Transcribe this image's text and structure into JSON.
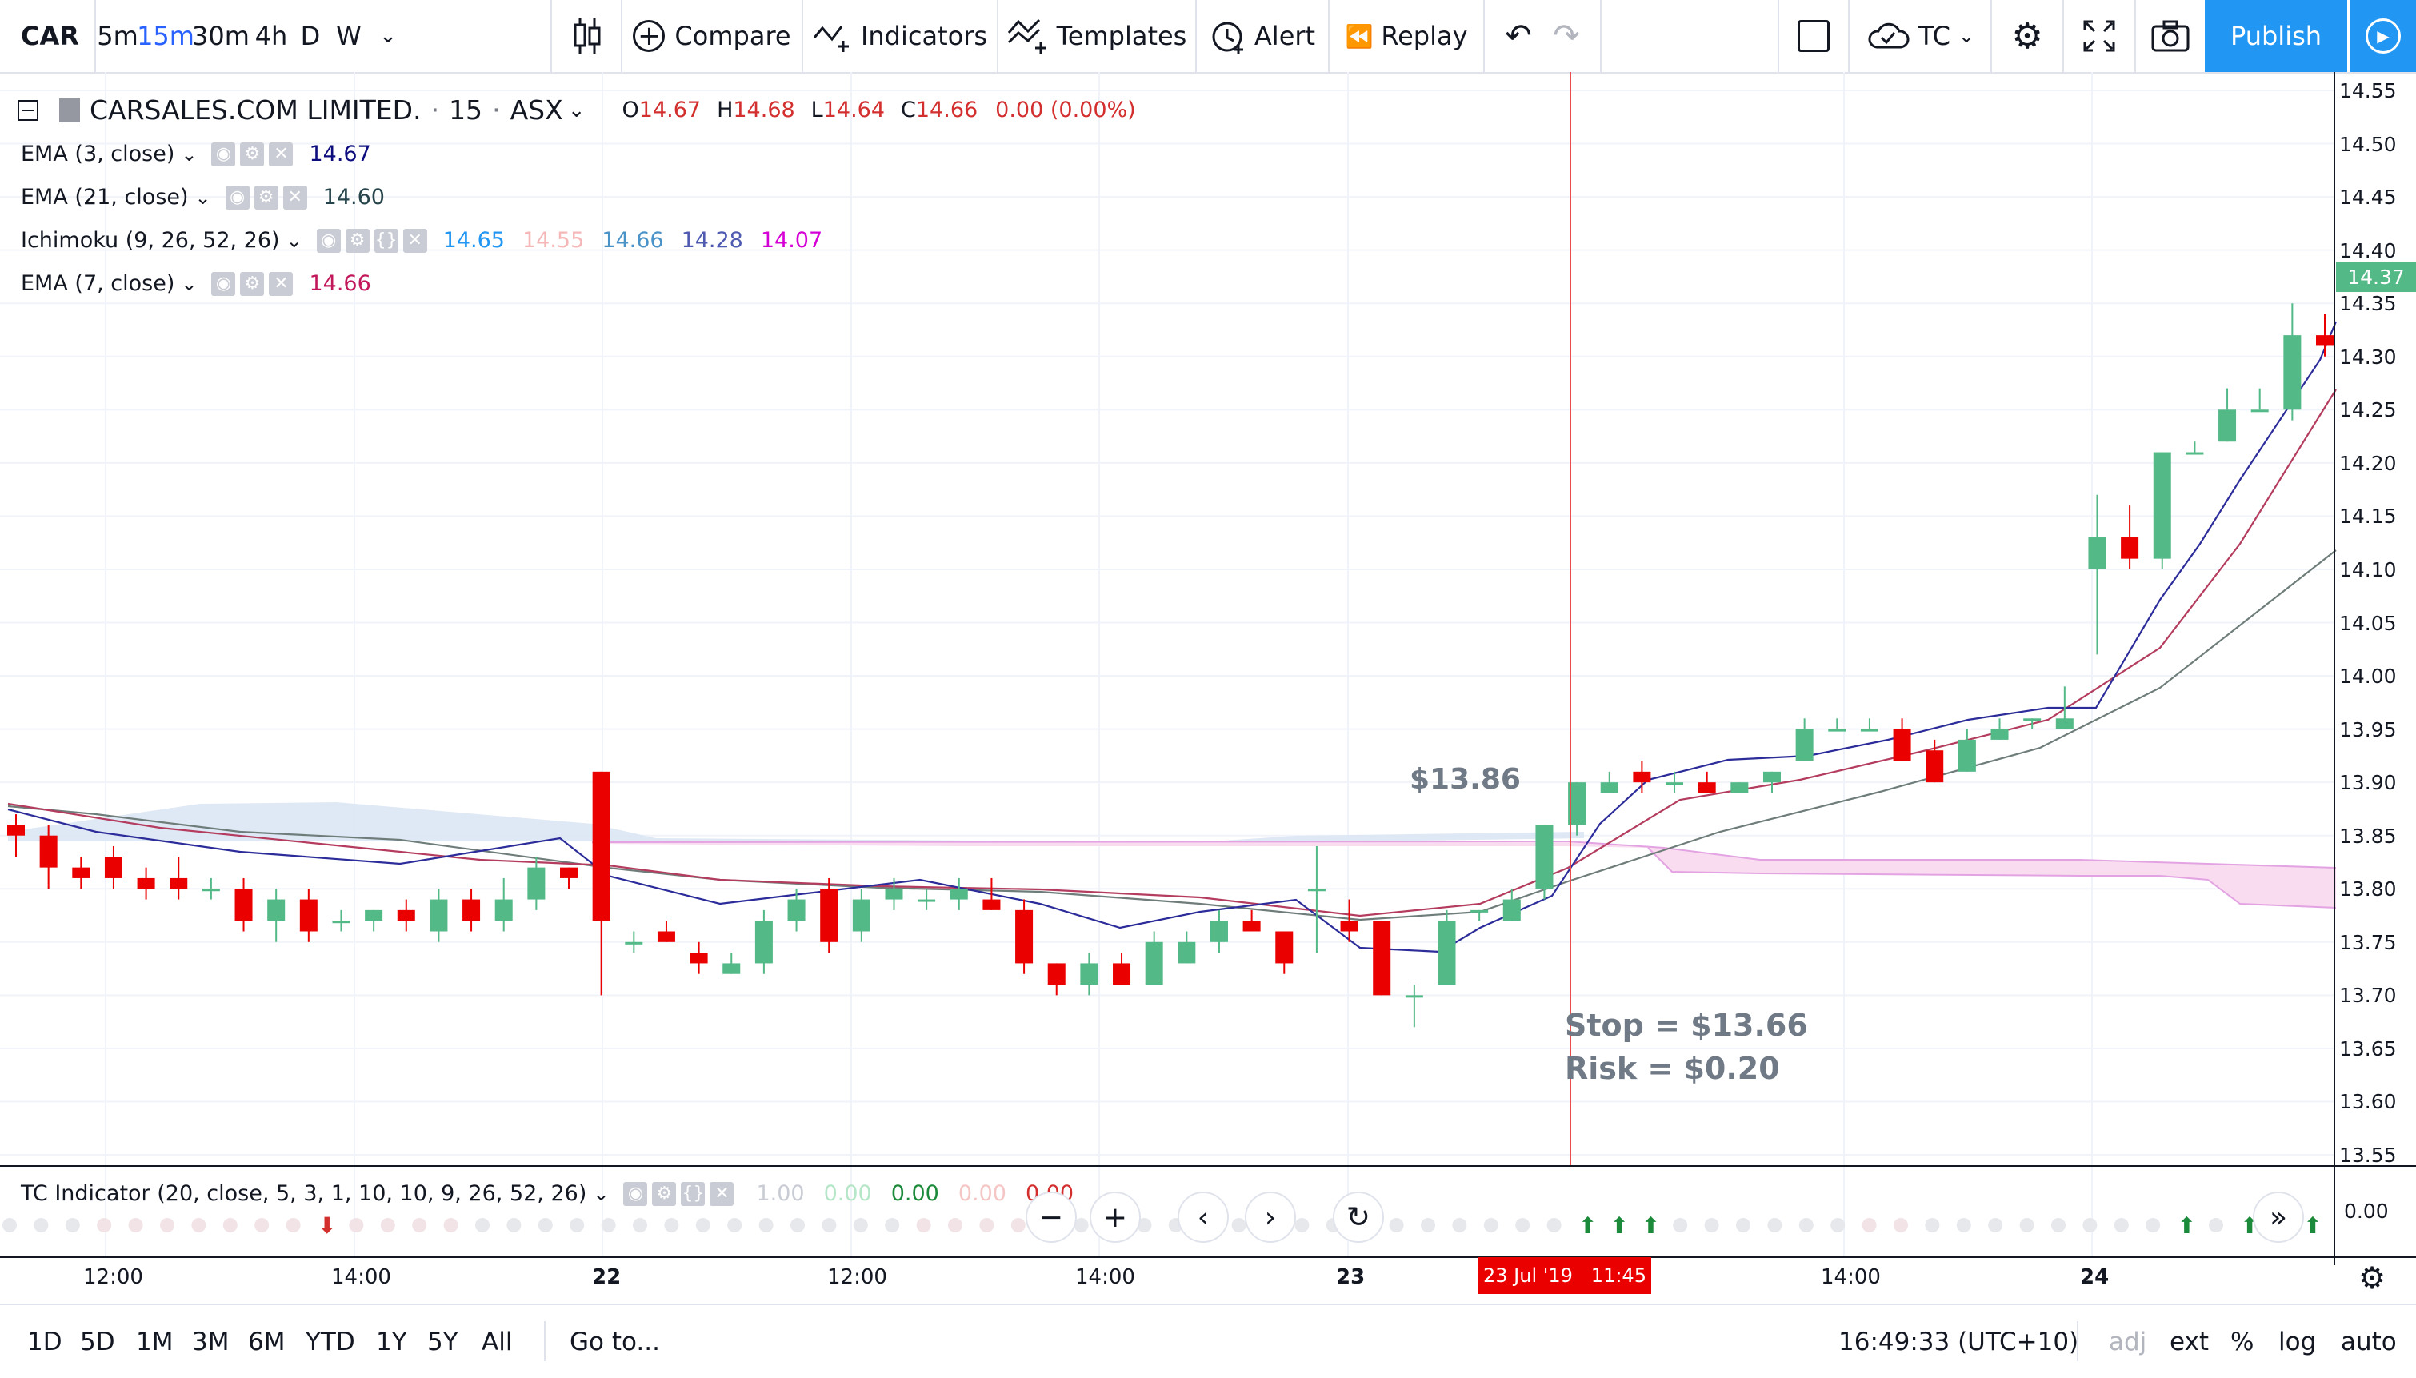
{
  "toolbar": {
    "symbol": "CAR",
    "intervals": [
      "5m",
      "15m",
      "30m",
      "4h",
      "D",
      "W"
    ],
    "active_interval": "15m",
    "compare": "Compare",
    "indicators": "Indicators",
    "templates": "Templates",
    "alert": "Alert",
    "replay": "Replay",
    "layout": "TC",
    "publish": "Publish"
  },
  "header": {
    "title": "CARSALES.COM LIMITED.",
    "interval": "15",
    "exchange": "ASX",
    "open_label": "O",
    "open": "14.67",
    "high_label": "H",
    "high": "14.68",
    "low_label": "L",
    "low": "14.64",
    "close_label": "C",
    "close": "14.66",
    "change": "0.00 (0.00%)"
  },
  "indicators": [
    {
      "name": "EMA (3, close)",
      "values": [
        "14.67"
      ],
      "colors": [
        "#0c0c7d"
      ]
    },
    {
      "name": "EMA (21, close)",
      "values": [
        "14.60"
      ],
      "colors": [
        "#24434a"
      ]
    },
    {
      "name": "Ichimoku (9, 26, 52, 26)",
      "values": [
        "14.65",
        "14.55",
        "14.66",
        "14.28",
        "14.07"
      ],
      "colors": [
        "#2196f3",
        "#f5b7b7",
        "#4a93c9",
        "#4f5bb0",
        "#d500d5"
      ]
    },
    {
      "name": "EMA (7, close)",
      "values": [
        "14.66"
      ],
      "colors": [
        "#c2185b"
      ]
    }
  ],
  "annotations": {
    "entry": "$13.86",
    "stop": "Stop = $13.66",
    "risk": "Risk = $0.20"
  },
  "price_axis": {
    "ticks": [
      "14.55",
      "14.50",
      "14.45",
      "14.40",
      "14.35",
      "14.30",
      "14.25",
      "14.20",
      "14.15",
      "14.10",
      "14.05",
      "14.00",
      "13.95",
      "13.90",
      "13.85",
      "13.80",
      "13.75",
      "13.70",
      "13.65",
      "13.60",
      "13.55"
    ],
    "current": "14.37"
  },
  "sub_pane": {
    "title": "TC Indicator (20, close, 5, 3, 1, 10, 10, 9, 26, 52, 26)",
    "values": [
      "1.00",
      "0.00",
      "0.00",
      "0.00",
      "0.00"
    ],
    "value_colors": [
      "#c9ccd4",
      "#b6e6c8",
      "#1b8a3a",
      "#f5c6c6",
      "#d32f2f"
    ],
    "axis_tick": "0.00"
  },
  "time_axis": {
    "labels": [
      "12:00",
      "14:00",
      "22",
      "12:00",
      "14:00",
      "23",
      "14:00",
      "24"
    ],
    "crosshair": "23 Jul '19   11:45"
  },
  "bottom_bar": {
    "ranges": [
      "1D",
      "5D",
      "1M",
      "3M",
      "6M",
      "YTD",
      "1Y",
      "5Y",
      "All"
    ],
    "goto": "Go to...",
    "clock": "16:49:33 (UTC+10)",
    "adj": "adj",
    "ext": "ext",
    "percent": "%",
    "log": "log",
    "auto": "auto"
  },
  "colors": {
    "up": "#53b987",
    "down": "#eb0000",
    "accent": "#2196f3"
  },
  "chart_data": {
    "type": "candlestick",
    "ylim": [
      13.51,
      14.57
    ],
    "candles": [
      [
        13.86,
        13.87,
        13.83,
        13.85
      ],
      [
        13.85,
        13.86,
        13.8,
        13.82
      ],
      [
        13.82,
        13.83,
        13.8,
        13.81
      ],
      [
        13.83,
        13.84,
        13.8,
        13.81
      ],
      [
        13.81,
        13.82,
        13.79,
        13.8
      ],
      [
        13.81,
        13.83,
        13.79,
        13.8
      ],
      [
        13.8,
        13.81,
        13.79,
        13.8
      ],
      [
        13.8,
        13.81,
        13.76,
        13.77
      ],
      [
        13.77,
        13.8,
        13.75,
        13.79
      ],
      [
        13.79,
        13.8,
        13.75,
        13.76
      ],
      [
        13.77,
        13.78,
        13.76,
        13.77
      ],
      [
        13.77,
        13.78,
        13.76,
        13.78
      ],
      [
        13.78,
        13.79,
        13.76,
        13.77
      ],
      [
        13.76,
        13.8,
        13.75,
        13.79
      ],
      [
        13.79,
        13.8,
        13.76,
        13.77
      ],
      [
        13.77,
        13.81,
        13.76,
        13.79
      ],
      [
        13.79,
        13.83,
        13.78,
        13.82
      ],
      [
        13.82,
        13.82,
        13.8,
        13.81
      ],
      [
        13.91,
        13.91,
        13.7,
        13.77
      ],
      [
        13.75,
        13.76,
        13.74,
        13.75
      ],
      [
        13.76,
        13.77,
        13.75,
        13.75
      ],
      [
        13.74,
        13.75,
        13.72,
        13.73
      ],
      [
        13.72,
        13.74,
        13.72,
        13.73
      ],
      [
        13.73,
        13.78,
        13.72,
        13.77
      ],
      [
        13.77,
        13.8,
        13.76,
        13.79
      ],
      [
        13.8,
        13.81,
        13.74,
        13.75
      ],
      [
        13.76,
        13.8,
        13.75,
        13.79
      ],
      [
        13.79,
        13.81,
        13.78,
        13.8
      ],
      [
        13.79,
        13.8,
        13.78,
        13.79
      ],
      [
        13.79,
        13.81,
        13.78,
        13.8
      ],
      [
        13.79,
        13.81,
        13.78,
        13.78
      ],
      [
        13.78,
        13.79,
        13.72,
        13.73
      ],
      [
        13.73,
        13.73,
        13.7,
        13.71
      ],
      [
        13.71,
        13.74,
        13.7,
        13.73
      ],
      [
        13.73,
        13.74,
        13.71,
        13.71
      ],
      [
        13.71,
        13.76,
        13.71,
        13.75
      ],
      [
        13.73,
        13.76,
        13.73,
        13.75
      ],
      [
        13.75,
        13.78,
        13.74,
        13.77
      ],
      [
        13.77,
        13.78,
        13.76,
        13.76
      ],
      [
        13.76,
        13.76,
        13.72,
        13.73
      ],
      [
        13.8,
        13.84,
        13.74,
        13.8
      ],
      [
        13.77,
        13.79,
        13.75,
        13.76
      ],
      [
        13.77,
        13.77,
        13.7,
        13.7
      ],
      [
        13.7,
        13.71,
        13.67,
        13.7
      ],
      [
        13.71,
        13.78,
        13.71,
        13.77
      ],
      [
        13.78,
        13.78,
        13.77,
        13.78
      ],
      [
        13.77,
        13.8,
        13.77,
        13.79
      ],
      [
        13.8,
        13.86,
        13.79,
        13.86
      ],
      [
        13.86,
        13.9,
        13.85,
        13.9
      ],
      [
        13.89,
        13.91,
        13.89,
        13.9
      ],
      [
        13.91,
        13.92,
        13.89,
        13.9
      ],
      [
        13.9,
        13.91,
        13.89,
        13.9
      ],
      [
        13.9,
        13.91,
        13.89,
        13.89
      ],
      [
        13.89,
        13.9,
        13.89,
        13.9
      ],
      [
        13.9,
        13.91,
        13.89,
        13.91
      ],
      [
        13.92,
        13.96,
        13.92,
        13.95
      ],
      [
        13.95,
        13.96,
        13.95,
        13.95
      ],
      [
        13.95,
        13.96,
        13.95,
        13.95
      ],
      [
        13.95,
        13.96,
        13.92,
        13.92
      ],
      [
        13.93,
        13.94,
        13.9,
        13.9
      ],
      [
        13.91,
        13.95,
        13.91,
        13.94
      ],
      [
        13.94,
        13.96,
        13.94,
        13.95
      ],
      [
        13.96,
        13.96,
        13.95,
        13.96
      ],
      [
        13.95,
        13.99,
        13.95,
        13.96
      ],
      [
        14.1,
        14.17,
        14.02,
        14.13
      ],
      [
        14.13,
        14.16,
        14.1,
        14.11
      ],
      [
        14.11,
        14.21,
        14.1,
        14.21
      ],
      [
        14.21,
        14.22,
        14.21,
        14.21
      ],
      [
        14.22,
        14.27,
        14.22,
        14.25
      ],
      [
        14.25,
        14.27,
        14.25,
        14.25
      ],
      [
        14.25,
        14.35,
        14.24,
        14.32
      ],
      [
        14.32,
        14.34,
        14.3,
        14.31
      ]
    ]
  }
}
